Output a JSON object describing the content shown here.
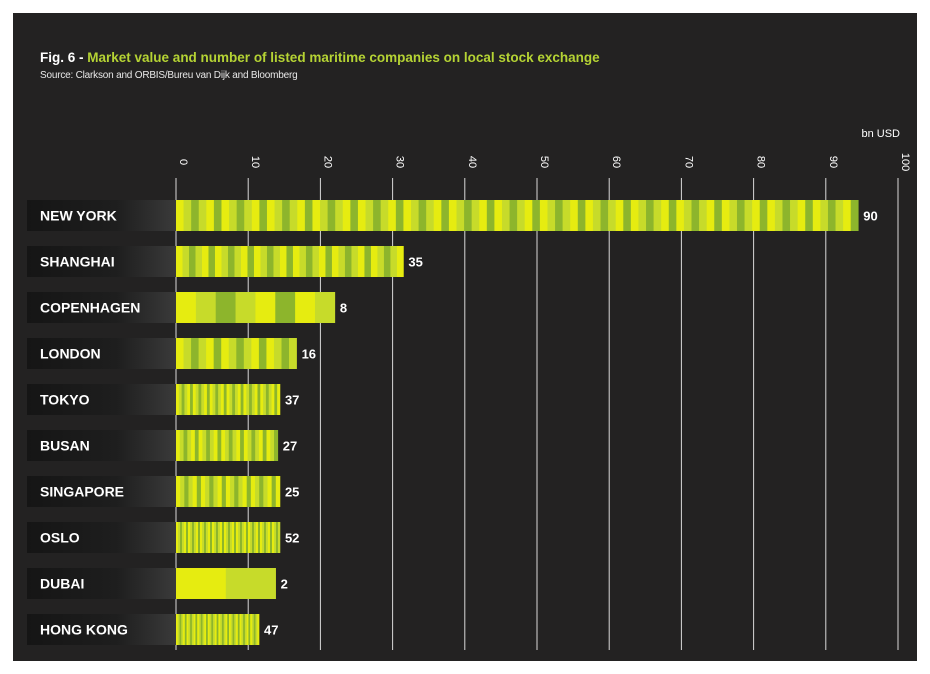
{
  "figure": {
    "number": "Fig. 6 -",
    "title": "Market value and number of listed maritime companies on local stock exchange",
    "source": "Source: Clarkson and ORBIS/Bureu van Dijk and Bloomberg"
  },
  "colors": {
    "background": "#232222",
    "accent": "#b5d334",
    "bar_light": "#e6ec10",
    "bar_mid": "#c7db2a",
    "bar_dark": "#8db52c",
    "text": "#ffffff"
  },
  "chart_data": {
    "type": "bar",
    "orientation": "horizontal",
    "title": "Market value and number of listed maritime companies on local stock exchange",
    "xlabel": "bn USD",
    "xlim": [
      0,
      100
    ],
    "xticks": [
      0,
      10,
      20,
      30,
      40,
      50,
      60,
      70,
      80,
      90,
      100
    ],
    "grid": true,
    "categories": [
      "NEW YORK",
      "SHANGHAI",
      "COPENHAGEN",
      "LONDON",
      "TOKYO",
      "BUSAN",
      "SINGAPORE",
      "OSLO",
      "DUBAI",
      "HONG KONG"
    ],
    "values": [
      94.5,
      31.5,
      22,
      16.7,
      14.4,
      14.1,
      14.4,
      14.4,
      13.8,
      11.5
    ],
    "company_counts": [
      90,
      35,
      8,
      16,
      37,
      27,
      25,
      52,
      2,
      47
    ]
  }
}
